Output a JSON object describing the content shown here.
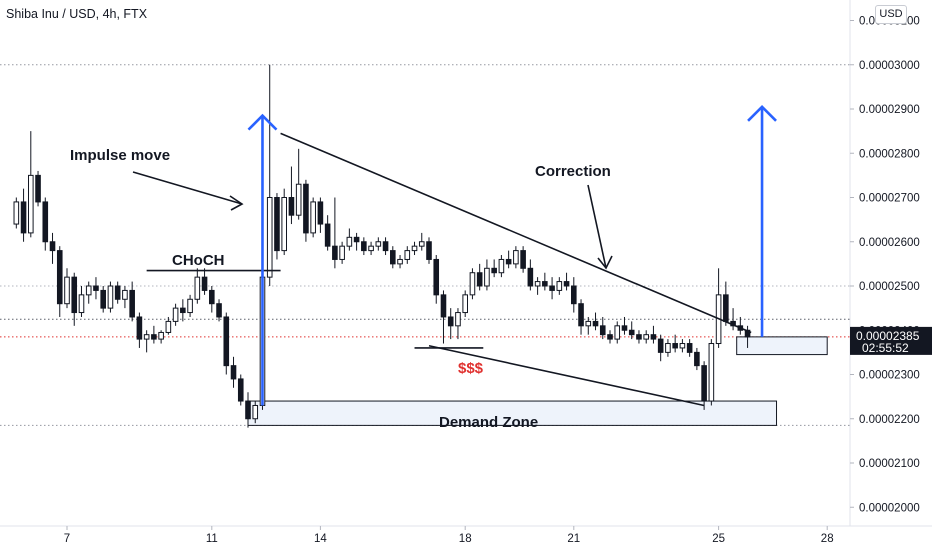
{
  "header": {
    "symbol_line": "Shiba Inu / USD, 4h, FTX",
    "currency": "USD"
  },
  "current_price": {
    "value": "0.00002385",
    "countdown": "02:55:52"
  },
  "chart_data": {
    "type": "candlestick",
    "symbol": "Shiba Inu / USD",
    "interval": "4h",
    "exchange": "FTX",
    "y_ticks": [
      "0.00003100",
      "0.00003000",
      "0.00002900",
      "0.00002800",
      "0.00002700",
      "0.00002600",
      "0.00002500",
      "0.00002400",
      "0.00002300",
      "0.00002200",
      "0.00002100",
      "0.00002000"
    ],
    "x_ticks": [
      "7",
      "11",
      "14",
      "18",
      "21",
      "25",
      "28"
    ],
    "ylim": [
      1.98e-05,
      3.16e-05
    ],
    "xlim": [
      5.5,
      28.8
    ],
    "candles": [
      [
        5.6,
        2640,
        2700,
        2630,
        2690
      ],
      [
        5.8,
        2690,
        2720,
        2600,
        2620
      ],
      [
        6.0,
        2620,
        2850,
        2610,
        2750
      ],
      [
        6.2,
        2750,
        2760,
        2680,
        2690
      ],
      [
        6.4,
        2690,
        2700,
        2580,
        2600
      ],
      [
        6.6,
        2600,
        2620,
        2550,
        2580
      ],
      [
        6.8,
        2580,
        2590,
        2430,
        2460
      ],
      [
        7.0,
        2460,
        2540,
        2450,
        2520
      ],
      [
        7.2,
        2520,
        2530,
        2410,
        2440
      ],
      [
        7.4,
        2440,
        2500,
        2430,
        2480
      ],
      [
        7.6,
        2480,
        2510,
        2460,
        2500
      ],
      [
        7.8,
        2500,
        2520,
        2470,
        2490
      ],
      [
        8.0,
        2490,
        2500,
        2440,
        2450
      ],
      [
        8.2,
        2450,
        2510,
        2440,
        2500
      ],
      [
        8.4,
        2500,
        2510,
        2460,
        2470
      ],
      [
        8.6,
        2470,
        2500,
        2450,
        2490
      ],
      [
        8.8,
        2490,
        2510,
        2420,
        2430
      ],
      [
        9.0,
        2430,
        2440,
        2360,
        2380
      ],
      [
        9.2,
        2380,
        2400,
        2350,
        2390
      ],
      [
        9.4,
        2390,
        2410,
        2370,
        2380
      ],
      [
        9.6,
        2380,
        2400,
        2370,
        2395
      ],
      [
        9.8,
        2395,
        2430,
        2390,
        2420
      ],
      [
        10.0,
        2420,
        2460,
        2410,
        2450
      ],
      [
        10.2,
        2450,
        2470,
        2420,
        2440
      ],
      [
        10.4,
        2440,
        2480,
        2430,
        2470
      ],
      [
        10.6,
        2470,
        2540,
        2460,
        2520
      ],
      [
        10.8,
        2520,
        2540,
        2480,
        2490
      ],
      [
        11.0,
        2490,
        2500,
        2440,
        2460
      ],
      [
        11.2,
        2460,
        2470,
        2420,
        2430
      ],
      [
        11.4,
        2430,
        2440,
        2300,
        2320
      ],
      [
        11.6,
        2320,
        2340,
        2270,
        2290
      ],
      [
        11.8,
        2290,
        2300,
        2230,
        2240
      ],
      [
        12.0,
        2240,
        2260,
        2180,
        2200
      ],
      [
        12.2,
        2200,
        2240,
        2190,
        2230
      ],
      [
        12.4,
        2230,
        2600,
        2220,
        2520
      ],
      [
        12.6,
        2520,
        3000,
        2500,
        2700
      ],
      [
        12.8,
        2700,
        2710,
        2560,
        2580
      ],
      [
        13.0,
        2580,
        2720,
        2570,
        2700
      ],
      [
        13.2,
        2700,
        2770,
        2640,
        2660
      ],
      [
        13.4,
        2660,
        2810,
        2650,
        2730
      ],
      [
        13.6,
        2730,
        2740,
        2600,
        2620
      ],
      [
        13.8,
        2620,
        2700,
        2610,
        2690
      ],
      [
        14.0,
        2690,
        2700,
        2620,
        2640
      ],
      [
        14.2,
        2640,
        2660,
        2580,
        2590
      ],
      [
        14.4,
        2590,
        2700,
        2540,
        2560
      ],
      [
        14.6,
        2560,
        2600,
        2550,
        2590
      ],
      [
        14.8,
        2590,
        2630,
        2580,
        2610
      ],
      [
        15.0,
        2610,
        2620,
        2580,
        2600
      ],
      [
        15.2,
        2600,
        2610,
        2570,
        2580
      ],
      [
        15.4,
        2580,
        2600,
        2570,
        2590
      ],
      [
        15.6,
        2590,
        2610,
        2580,
        2600
      ],
      [
        15.8,
        2600,
        2610,
        2570,
        2580
      ],
      [
        16.0,
        2580,
        2590,
        2540,
        2550
      ],
      [
        16.2,
        2550,
        2570,
        2540,
        2560
      ],
      [
        16.4,
        2560,
        2590,
        2550,
        2580
      ],
      [
        16.6,
        2580,
        2600,
        2570,
        2590
      ],
      [
        16.8,
        2590,
        2620,
        2580,
        2600
      ],
      [
        17.0,
        2600,
        2610,
        2550,
        2560
      ],
      [
        17.2,
        2560,
        2570,
        2460,
        2480
      ],
      [
        17.4,
        2480,
        2490,
        2370,
        2430
      ],
      [
        17.6,
        2430,
        2450,
        2380,
        2410
      ],
      [
        17.8,
        2410,
        2450,
        2380,
        2440
      ],
      [
        18.0,
        2440,
        2490,
        2430,
        2480
      ],
      [
        18.2,
        2480,
        2540,
        2470,
        2530
      ],
      [
        18.4,
        2530,
        2550,
        2490,
        2500
      ],
      [
        18.6,
        2500,
        2560,
        2490,
        2540
      ],
      [
        18.8,
        2540,
        2560,
        2520,
        2530
      ],
      [
        19.0,
        2530,
        2570,
        2520,
        2560
      ],
      [
        19.2,
        2560,
        2580,
        2540,
        2550
      ],
      [
        19.4,
        2550,
        2590,
        2540,
        2580
      ],
      [
        19.6,
        2580,
        2590,
        2530,
        2540
      ],
      [
        19.8,
        2540,
        2560,
        2490,
        2500
      ],
      [
        20.0,
        2500,
        2520,
        2480,
        2510
      ],
      [
        20.2,
        2510,
        2530,
        2490,
        2500
      ],
      [
        20.4,
        2500,
        2520,
        2470,
        2490
      ],
      [
        20.6,
        2490,
        2520,
        2480,
        2510
      ],
      [
        20.8,
        2510,
        2530,
        2490,
        2500
      ],
      [
        21.0,
        2500,
        2520,
        2440,
        2460
      ],
      [
        21.2,
        2460,
        2470,
        2390,
        2410
      ],
      [
        21.4,
        2410,
        2430,
        2390,
        2420
      ],
      [
        21.6,
        2420,
        2440,
        2400,
        2410
      ],
      [
        21.8,
        2410,
        2430,
        2380,
        2390
      ],
      [
        22.0,
        2390,
        2400,
        2370,
        2380
      ],
      [
        22.2,
        2380,
        2420,
        2370,
        2410
      ],
      [
        22.4,
        2410,
        2430,
        2390,
        2400
      ],
      [
        22.6,
        2400,
        2420,
        2380,
        2390
      ],
      [
        22.8,
        2390,
        2400,
        2370,
        2380
      ],
      [
        23.0,
        2380,
        2400,
        2370,
        2390
      ],
      [
        23.2,
        2390,
        2410,
        2370,
        2380
      ],
      [
        23.4,
        2380,
        2390,
        2330,
        2350
      ],
      [
        23.6,
        2350,
        2380,
        2340,
        2370
      ],
      [
        23.8,
        2370,
        2390,
        2350,
        2360
      ],
      [
        24.0,
        2360,
        2380,
        2350,
        2370
      ],
      [
        24.2,
        2370,
        2380,
        2340,
        2350
      ],
      [
        24.4,
        2350,
        2360,
        2310,
        2320
      ],
      [
        24.6,
        2320,
        2330,
        2220,
        2240
      ],
      [
        24.8,
        2240,
        2380,
        2230,
        2370
      ],
      [
        25.0,
        2370,
        2540,
        2360,
        2480
      ],
      [
        25.2,
        2480,
        2510,
        2410,
        2420
      ],
      [
        25.4,
        2420,
        2450,
        2400,
        2410
      ],
      [
        25.6,
        2410,
        2430,
        2390,
        2400
      ],
      [
        25.8,
        2400,
        2410,
        2360,
        2385
      ]
    ],
    "annotations": [
      {
        "text": "Impulse move"
      },
      {
        "text": "CHoCH"
      },
      {
        "text": "Correction"
      },
      {
        "text": "$$$"
      },
      {
        "text": "Demand Zone"
      }
    ]
  }
}
